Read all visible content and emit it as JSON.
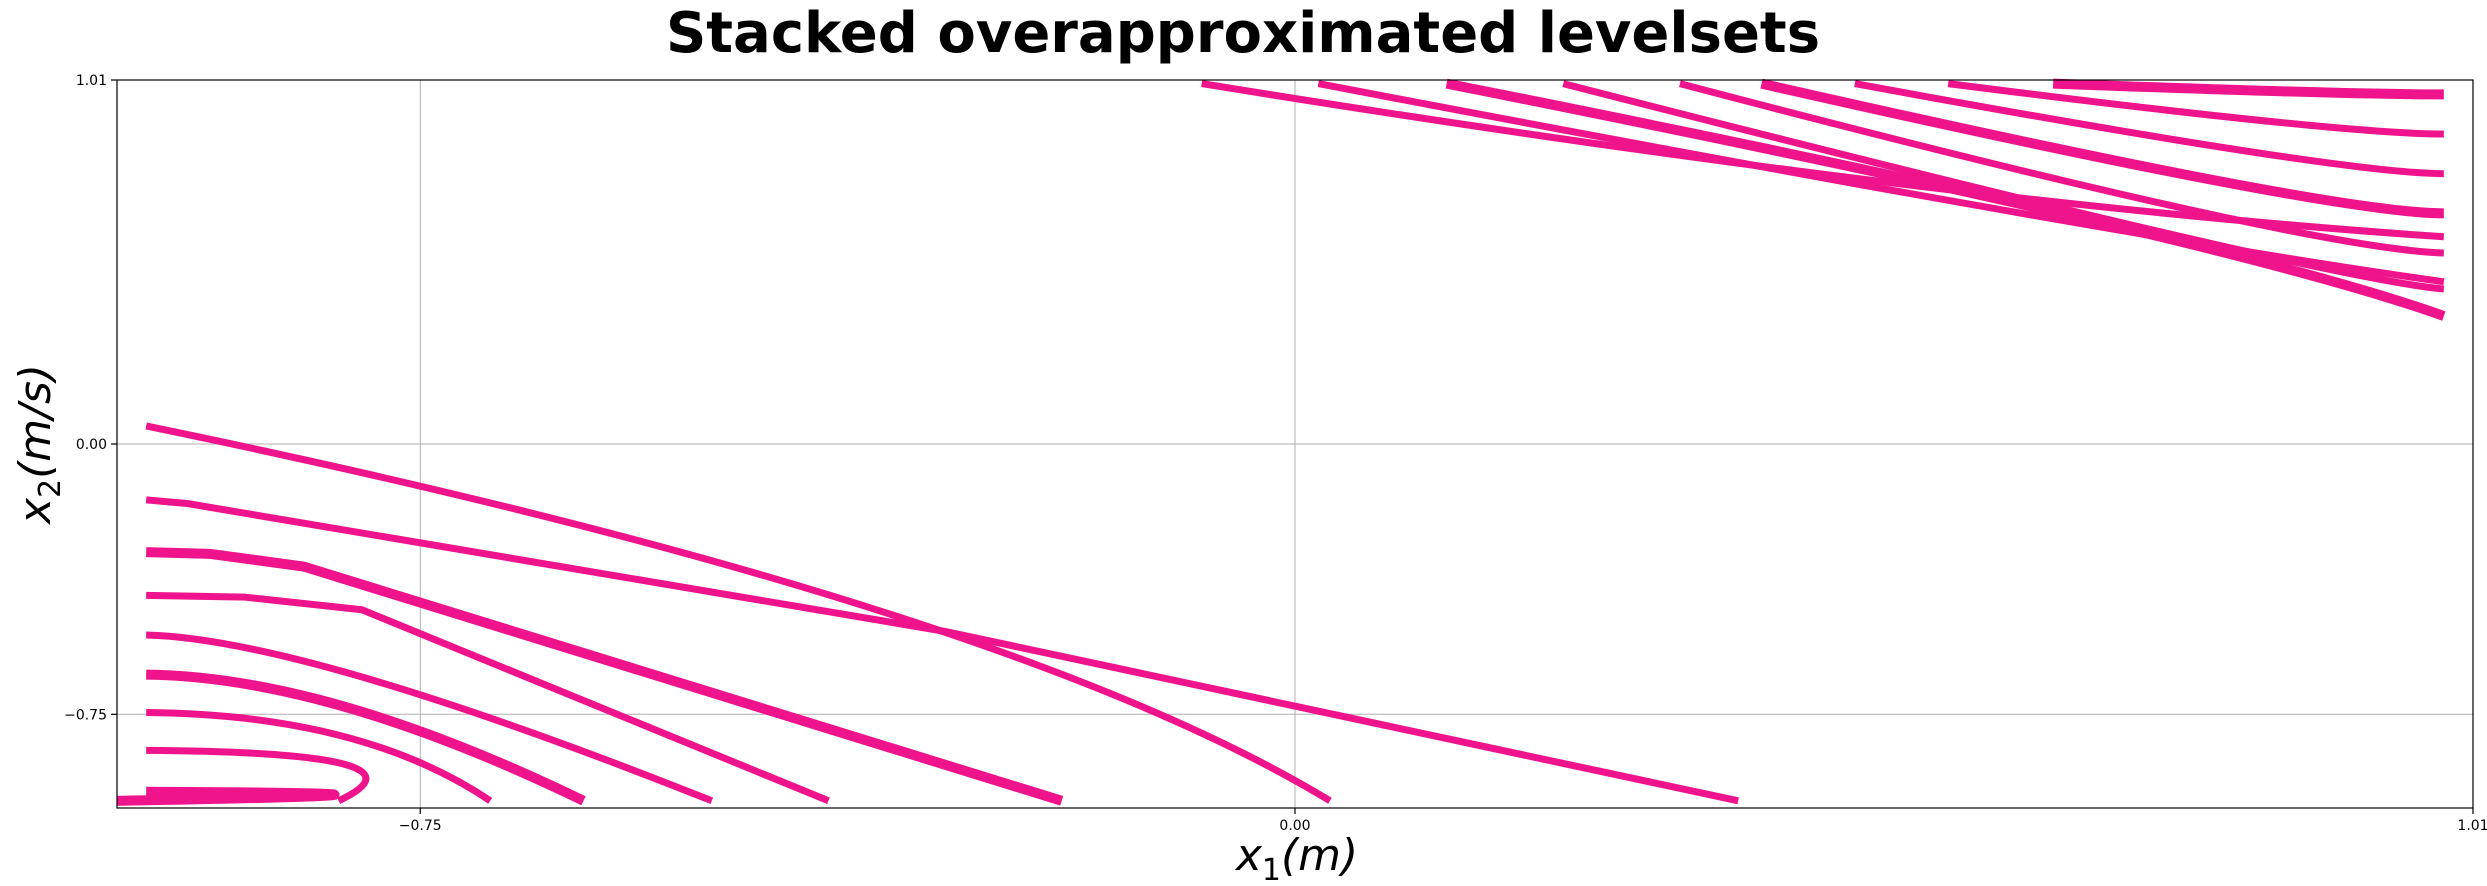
{
  "chart_data": {
    "type": "line",
    "title": "Stacked overapproximated levelsets",
    "xlabel": "x_1(m)",
    "ylabel": "x_2(m/s)",
    "xlim": [
      -1.01,
      1.01
    ],
    "ylim": [
      -1.01,
      1.01
    ],
    "xticks": [
      -0.75,
      0.0,
      1.01
    ],
    "xtick_labels": [
      "−0.75",
      "0.00",
      "1.01"
    ],
    "yticks": [
      -0.75,
      0.0,
      1.01
    ],
    "ytick_labels": [
      "−0.75",
      "0.00",
      "1.01"
    ],
    "grid": true,
    "color": "#f0148c",
    "series": [
      {
        "points": [
          [
            -0.985,
            0.05
          ],
          [
            -0.25,
            -0.44
          ],
          [
            0.03,
            -0.99
          ]
        ]
      },
      {
        "points": [
          [
            -0.985,
            -0.155
          ],
          [
            -0.95,
            -0.165
          ],
          [
            -0.3,
            -0.52
          ],
          [
            0.38,
            -0.99
          ]
        ]
      },
      {
        "points": [
          [
            -0.985,
            -0.3
          ],
          [
            -0.93,
            -0.305
          ],
          [
            -0.85,
            -0.34
          ],
          [
            -0.2,
            -0.99
          ]
        ]
      },
      {
        "points": [
          [
            -0.985,
            -0.42
          ],
          [
            -0.9,
            -0.425
          ],
          [
            -0.8,
            -0.46
          ],
          [
            -0.4,
            -0.99
          ]
        ]
      },
      {
        "points": [
          [
            -0.985,
            -0.53
          ],
          [
            -0.85,
            -0.54
          ],
          [
            -0.5,
            -0.99
          ]
        ]
      },
      {
        "points": [
          [
            -0.985,
            -0.64
          ],
          [
            -0.83,
            -0.645
          ],
          [
            -0.61,
            -0.99
          ]
        ]
      },
      {
        "points": [
          [
            -0.985,
            -0.745
          ],
          [
            -0.8,
            -0.75
          ],
          [
            -0.69,
            -0.99
          ]
        ]
      },
      {
        "points": [
          [
            -0.985,
            -0.85
          ],
          [
            -0.73,
            -0.855
          ],
          [
            -0.82,
            -0.99
          ]
        ]
      },
      {
        "points": [
          [
            -0.985,
            -0.965
          ],
          [
            -0.65,
            -0.97
          ],
          [
            -1.01,
            -0.99
          ]
        ]
      },
      {
        "points": [
          [
            -0.08,
            1.0
          ],
          [
            0.55,
            0.67
          ],
          [
            0.985,
            0.575
          ]
        ]
      },
      {
        "points": [
          [
            0.02,
            1.0
          ],
          [
            0.7,
            0.58
          ],
          [
            0.985,
            0.45
          ]
        ]
      },
      {
        "points": [
          [
            0.13,
            1.0
          ],
          [
            0.8,
            0.57
          ],
          [
            0.985,
            0.355
          ]
        ]
      },
      {
        "points": [
          [
            0.23,
            1.0
          ],
          [
            0.88,
            0.46
          ],
          [
            0.985,
            0.43
          ]
        ]
      },
      {
        "points": [
          [
            0.33,
            1.0
          ],
          [
            0.87,
            0.54
          ],
          [
            0.985,
            0.53
          ]
        ]
      },
      {
        "points": [
          [
            0.4,
            1.0
          ],
          [
            0.89,
            0.64
          ],
          [
            0.985,
            0.64
          ]
        ]
      },
      {
        "points": [
          [
            0.48,
            1.0
          ],
          [
            0.9,
            0.75
          ],
          [
            0.985,
            0.75
          ]
        ]
      },
      {
        "points": [
          [
            0.56,
            1.0
          ],
          [
            0.9,
            0.86
          ],
          [
            0.985,
            0.86
          ]
        ]
      },
      {
        "points": [
          [
            0.65,
            1.0
          ],
          [
            0.9,
            0.97
          ],
          [
            0.985,
            0.97
          ]
        ]
      }
    ]
  }
}
